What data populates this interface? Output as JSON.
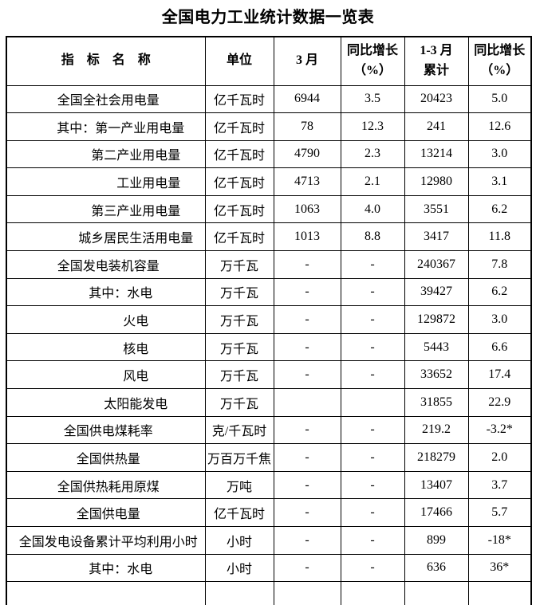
{
  "title": "全国电力工业统计数据一览表",
  "table": {
    "columns": [
      {
        "label": "指　标　名　称"
      },
      {
        "label": "单位"
      },
      {
        "label": "3 月"
      },
      {
        "label": "同比增长\n（%）"
      },
      {
        "label": "1-3 月\n累计"
      },
      {
        "label": "同比增长\n（%）"
      }
    ],
    "rows": [
      {
        "indent": 0,
        "name": "全国全社会用电量",
        "unit": "亿千瓦时",
        "march": "6944",
        "march_yoy": "3.5",
        "cumulative": "20423",
        "cumulative_yoy": "5.0"
      },
      {
        "indent": 1,
        "name": "其中：第一产业用电量",
        "unit": "亿千瓦时",
        "march": "78",
        "march_yoy": "12.3",
        "cumulative": "241",
        "cumulative_yoy": "12.6"
      },
      {
        "indent": 2,
        "name": "第二产业用电量",
        "unit": "亿千瓦时",
        "march": "4790",
        "march_yoy": "2.3",
        "cumulative": "13214",
        "cumulative_yoy": "3.0"
      },
      {
        "indent": 3,
        "name": "工业用电量",
        "unit": "亿千瓦时",
        "march": "4713",
        "march_yoy": "2.1",
        "cumulative": "12980",
        "cumulative_yoy": "3.1"
      },
      {
        "indent": 2,
        "name": "第三产业用电量",
        "unit": "亿千瓦时",
        "march": "1063",
        "march_yoy": "4.0",
        "cumulative": "3551",
        "cumulative_yoy": "6.2"
      },
      {
        "indent": 2,
        "name": "城乡居民生活用电量",
        "unit": "亿千瓦时",
        "march": "1013",
        "march_yoy": "8.8",
        "cumulative": "3417",
        "cumulative_yoy": "11.8"
      },
      {
        "indent": 0,
        "name": "全国发电装机容量",
        "unit": "万千瓦",
        "march": "-",
        "march_yoy": "-",
        "cumulative": "240367",
        "cumulative_yoy": "7.8"
      },
      {
        "indent": 1,
        "name": "其中：水电",
        "unit": "万千瓦",
        "march": "-",
        "march_yoy": "-",
        "cumulative": "39427",
        "cumulative_yoy": "6.2"
      },
      {
        "indent": 2,
        "name": "火电",
        "unit": "万千瓦",
        "march": "-",
        "march_yoy": "-",
        "cumulative": "129872",
        "cumulative_yoy": "3.0"
      },
      {
        "indent": 2,
        "name": "核电",
        "unit": "万千瓦",
        "march": "-",
        "march_yoy": "-",
        "cumulative": "5443",
        "cumulative_yoy": "6.6"
      },
      {
        "indent": 2,
        "name": "风电",
        "unit": "万千瓦",
        "march": "-",
        "march_yoy": "-",
        "cumulative": "33652",
        "cumulative_yoy": "17.4"
      },
      {
        "indent": 2,
        "name": "太阳能发电",
        "unit": "万千瓦",
        "march": "",
        "march_yoy": "",
        "cumulative": "31855",
        "cumulative_yoy": "22.9"
      },
      {
        "indent": 0,
        "name": "全国供电煤耗率",
        "unit": "克/千瓦时",
        "march": "-",
        "march_yoy": "-",
        "cumulative": "219.2",
        "cumulative_yoy": "-3.2*"
      },
      {
        "indent": 0,
        "name": "全国供热量",
        "unit": "万百万千焦",
        "march": "-",
        "march_yoy": "-",
        "cumulative": "218279",
        "cumulative_yoy": "2.0"
      },
      {
        "indent": 0,
        "name": "全国供热耗用原煤",
        "unit": "万吨",
        "march": "-",
        "march_yoy": "-",
        "cumulative": "13407",
        "cumulative_yoy": "3.7"
      },
      {
        "indent": 0,
        "name": "全国供电量",
        "unit": "亿千瓦时",
        "march": "-",
        "march_yoy": "-",
        "cumulative": "17466",
        "cumulative_yoy": "5.7"
      },
      {
        "indent": 0,
        "name": "全国发电设备累计平均利用小时",
        "unit": "小时",
        "march": "-",
        "march_yoy": "-",
        "cumulative": "899",
        "cumulative_yoy": "-18*"
      },
      {
        "indent": 1,
        "name": "其中：水电",
        "unit": "小时",
        "march": "-",
        "march_yoy": "-",
        "cumulative": "636",
        "cumulative_yoy": "36*"
      },
      {
        "indent": 0,
        "name": "",
        "unit": "",
        "march": "",
        "march_yoy": "",
        "cumulative": "",
        "cumulative_yoy": ""
      }
    ]
  }
}
